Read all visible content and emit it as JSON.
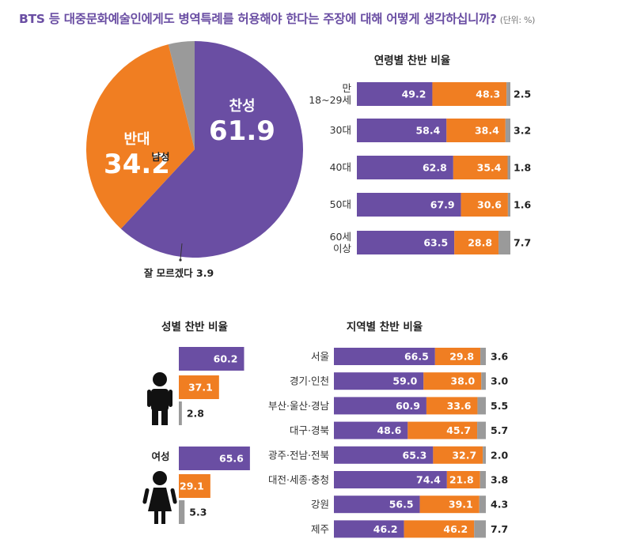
{
  "title": "BTS 등 대중문화예술인에게도 병역특례를 허용해야 한다는 주장에 대해 어떻게 생각하십니까?",
  "unit": "(단위: %)",
  "colors": {
    "agree": "#6a4ea3",
    "disagree": "#f07e22",
    "unknown": "#9a9a9a"
  },
  "chart_data": [
    {
      "type": "pie",
      "title": "",
      "slices": [
        {
          "name": "찬성",
          "value": 61.9
        },
        {
          "name": "반대",
          "value": 34.2
        },
        {
          "name": "잘 모르겠다",
          "value": 3.9
        }
      ],
      "unknown_label": "잘 모르겠다 3.9"
    },
    {
      "type": "bar",
      "stacked": true,
      "title": "연령별 찬반 비율",
      "categories": [
        [
          "만",
          "18~29세"
        ],
        [
          "30대"
        ],
        [
          "40대"
        ],
        [
          "50대"
        ],
        [
          "60세",
          "이상"
        ]
      ],
      "series": [
        {
          "name": "찬성",
          "values": [
            49.2,
            58.4,
            62.8,
            67.9,
            63.5
          ]
        },
        {
          "name": "반대",
          "values": [
            48.3,
            38.4,
            35.4,
            30.6,
            28.8
          ]
        },
        {
          "name": "잘 모르겠다",
          "values": [
            2.5,
            3.2,
            1.8,
            1.6,
            7.7
          ]
        }
      ]
    },
    {
      "type": "bar",
      "title": "성별 찬반 비율",
      "categories": [
        "남성",
        "여성"
      ],
      "series": [
        {
          "name": "찬성",
          "values": [
            60.2,
            65.6
          ]
        },
        {
          "name": "반대",
          "values": [
            37.1,
            29.1
          ]
        },
        {
          "name": "잘 모르겠다",
          "values": [
            2.8,
            5.3
          ]
        }
      ]
    },
    {
      "type": "bar",
      "stacked": true,
      "title": "지역별 찬반 비율",
      "categories": [
        "서울",
        "경기·인천",
        "부산·울산·경남",
        "대구·경북",
        "광주·전남·전북",
        "대전·세종·충청",
        "강원",
        "제주"
      ],
      "series": [
        {
          "name": "찬성",
          "values": [
            66.5,
            59.0,
            60.9,
            48.6,
            65.3,
            74.4,
            56.5,
            46.2
          ]
        },
        {
          "name": "반대",
          "values": [
            29.8,
            38.0,
            33.6,
            45.7,
            32.7,
            21.8,
            39.1,
            46.2
          ]
        },
        {
          "name": "잘 모르겠다",
          "values": [
            3.6,
            3.0,
            5.5,
            5.7,
            2.0,
            3.8,
            4.3,
            7.7
          ]
        }
      ]
    }
  ]
}
